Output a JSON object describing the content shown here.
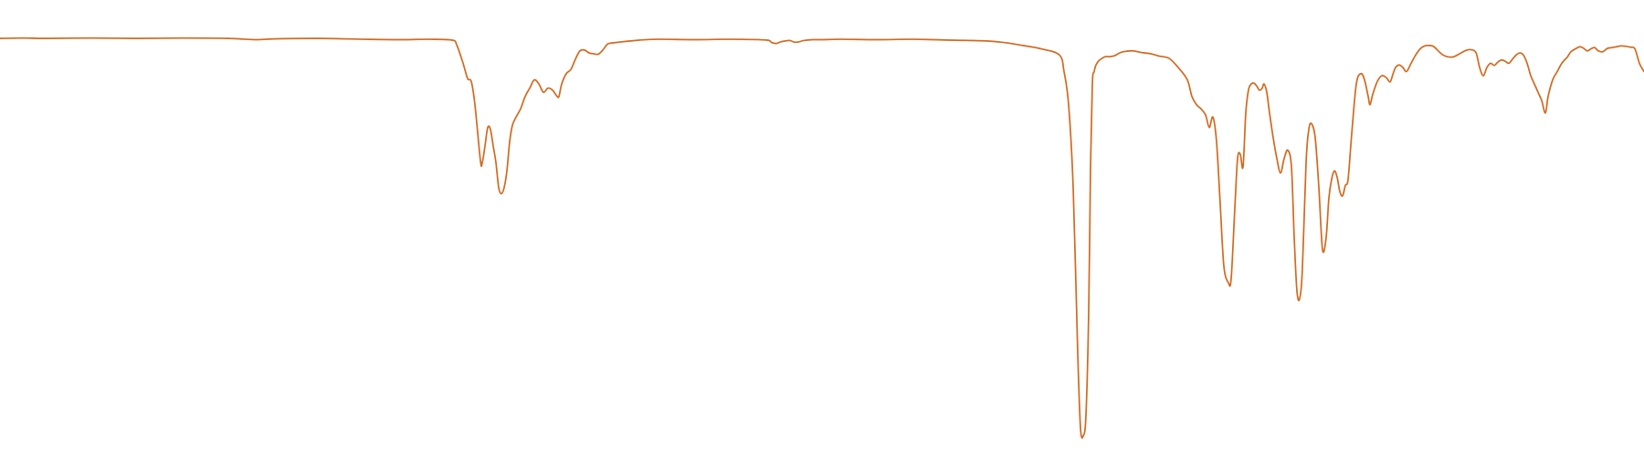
{
  "chart_data": {
    "type": "line",
    "title": "",
    "xlabel": "",
    "ylabel": "",
    "xlim": [
      0,
      1800
    ],
    "ylim": [
      0,
      100
    ],
    "grid": false,
    "legend": "none",
    "series": [
      {
        "color": "#d2691e",
        "x": [
          0,
          25,
          50,
          100,
          150,
          200,
          250,
          280,
          300,
          350,
          400,
          440,
          470,
          495,
          500,
          507,
          512,
          516,
          520,
          526,
          528,
          531,
          534,
          537,
          540,
          543,
          546,
          549,
          552,
          555,
          558,
          561,
          565,
          570,
          575,
          580,
          585,
          590,
          595,
          600,
          605,
          610,
          612,
          615,
          620,
          625,
          630,
          635,
          640,
          645,
          650,
          655,
          660,
          665,
          670,
          700,
          720,
          760,
          800,
          840,
          845,
          850,
          855,
          860,
          865,
          870,
          875,
          880,
          890,
          900,
          920,
          960,
          1000,
          1040,
          1080,
          1100,
          1120,
          1140,
          1160,
          1165,
          1170,
          1175,
          1180,
          1183,
          1186,
          1189,
          1192,
          1194,
          1196,
          1198,
          1200,
          1203,
          1206,
          1210,
          1215,
          1220,
          1225,
          1230,
          1240,
          1250,
          1260,
          1270,
          1280,
          1290,
          1300,
          1305,
          1310,
          1315,
          1320,
          1324,
          1328,
          1332,
          1336,
          1340,
          1345,
          1348,
          1352,
          1355,
          1358,
          1361,
          1364,
          1367,
          1370,
          1373,
          1376,
          1379,
          1382,
          1384,
          1387,
          1390,
          1394,
          1398,
          1402,
          1406,
          1410,
          1414,
          1417,
          1420,
          1423,
          1426,
          1430,
          1433,
          1436,
          1440,
          1444,
          1448,
          1452,
          1455,
          1458,
          1461,
          1464,
          1467,
          1470,
          1473,
          1476,
          1480,
          1485,
          1490,
          1494,
          1498,
          1500,
          1503,
          1508,
          1513,
          1518,
          1522,
          1525,
          1528,
          1532,
          1536,
          1540,
          1545,
          1550,
          1555,
          1560,
          1565,
          1570,
          1580,
          1590,
          1598,
          1605,
          1610,
          1616,
          1620,
          1624,
          1628,
          1632,
          1636,
          1640,
          1644,
          1648,
          1652,
          1656,
          1660,
          1664,
          1668,
          1672,
          1676,
          1680,
          1684,
          1688,
          1692,
          1695,
          1700,
          1705,
          1710,
          1716,
          1720,
          1725,
          1730,
          1734,
          1738,
          1742,
          1746,
          1750,
          1755,
          1760,
          1765,
          1770,
          1775,
          1780,
          1785,
          1790,
          1795,
          1800
        ],
        "y": [
          96.0,
          96.1,
          96.0,
          96.1,
          96.0,
          96.1,
          96.0,
          95.7,
          95.9,
          96.0,
          95.8,
          95.7,
          95.8,
          95.6,
          94.5,
          90.0,
          86.3,
          85.6,
          80.0,
          66.5,
          66.0,
          70.0,
          74.5,
          74.0,
          70.0,
          66.0,
          60.0,
          58.5,
          60.0,
          64.0,
          71.0,
          75.0,
          77.0,
          79.0,
          82.0,
          84.0,
          86.0,
          85.0,
          83.0,
          84.0,
          83.5,
          82.0,
          82.0,
          85.0,
          87.5,
          88.5,
          91.0,
          93.0,
          93.2,
          92.5,
          92.3,
          92.2,
          93.2,
          94.6,
          94.9,
          95.6,
          95.8,
          95.7,
          95.8,
          95.6,
          95.0,
          94.8,
          95.2,
          95.4,
          95.5,
          95.1,
          95.2,
          95.5,
          95.7,
          95.7,
          95.8,
          95.7,
          95.8,
          95.6,
          95.4,
          95.0,
          94.3,
          93.5,
          92.0,
          88.0,
          80.0,
          60.0,
          20.0,
          2.0,
          0.0,
          5.0,
          30.0,
          65.0,
          85.0,
          88.0,
          89.6,
          90.6,
          91.1,
          91.6,
          91.6,
          91.8,
          92.4,
          92.8,
          93.0,
          92.6,
          92.3,
          91.7,
          91.2,
          89.0,
          86.0,
          82.0,
          80.0,
          79.0,
          77.5,
          74.5,
          77.0,
          71.0,
          56.0,
          41.0,
          37.0,
          38.0,
          55.0,
          67.0,
          68.0,
          65.0,
          78.0,
          83.6,
          85.0,
          85.2,
          84.5,
          83.5,
          84.0,
          85.0,
          83.0,
          78.0,
          72.0,
          67.0,
          63.5,
          67.0,
          69.0,
          65.0,
          48.0,
          35.0,
          33.2,
          40.5,
          66.0,
          74.0,
          75.4,
          72.0,
          60.0,
          45.0,
          48.0,
          57.5,
          62.0,
          64.0,
          62.5,
          59.0,
          58.0,
          60.5,
          62.0,
          73.0,
          85.0,
          87.5,
          86.0,
          82.0,
          80.0,
          82.5,
          85.6,
          87.0,
          86.5,
          85.5,
          87.3,
          89.0,
          89.6,
          89.0,
          88.0,
          90.0,
          92.0,
          93.5,
          94.2,
          94.3,
          94.0,
          92.0,
          91.5,
          92.3,
          93.1,
          93.3,
          92.6,
          89.0,
          87.0,
          89.0,
          90.0,
          89.5,
          90.3,
          90.8,
          90.5,
          90.0,
          91.0,
          92.0,
          92.5,
          92.0,
          90.0,
          87.0,
          85.0,
          83.0,
          81.0,
          78.0,
          82.0,
          86.0,
          88.0,
          90.0,
          91.5,
          92.8,
          93.5,
          94.0,
          93.6,
          93.0,
          93.5,
          93.8,
          93.0,
          92.8,
          93.6,
          93.8,
          94.0,
          94.2,
          94.1,
          93.9,
          93.5,
          90.0,
          88.0
        ]
      }
    ]
  }
}
